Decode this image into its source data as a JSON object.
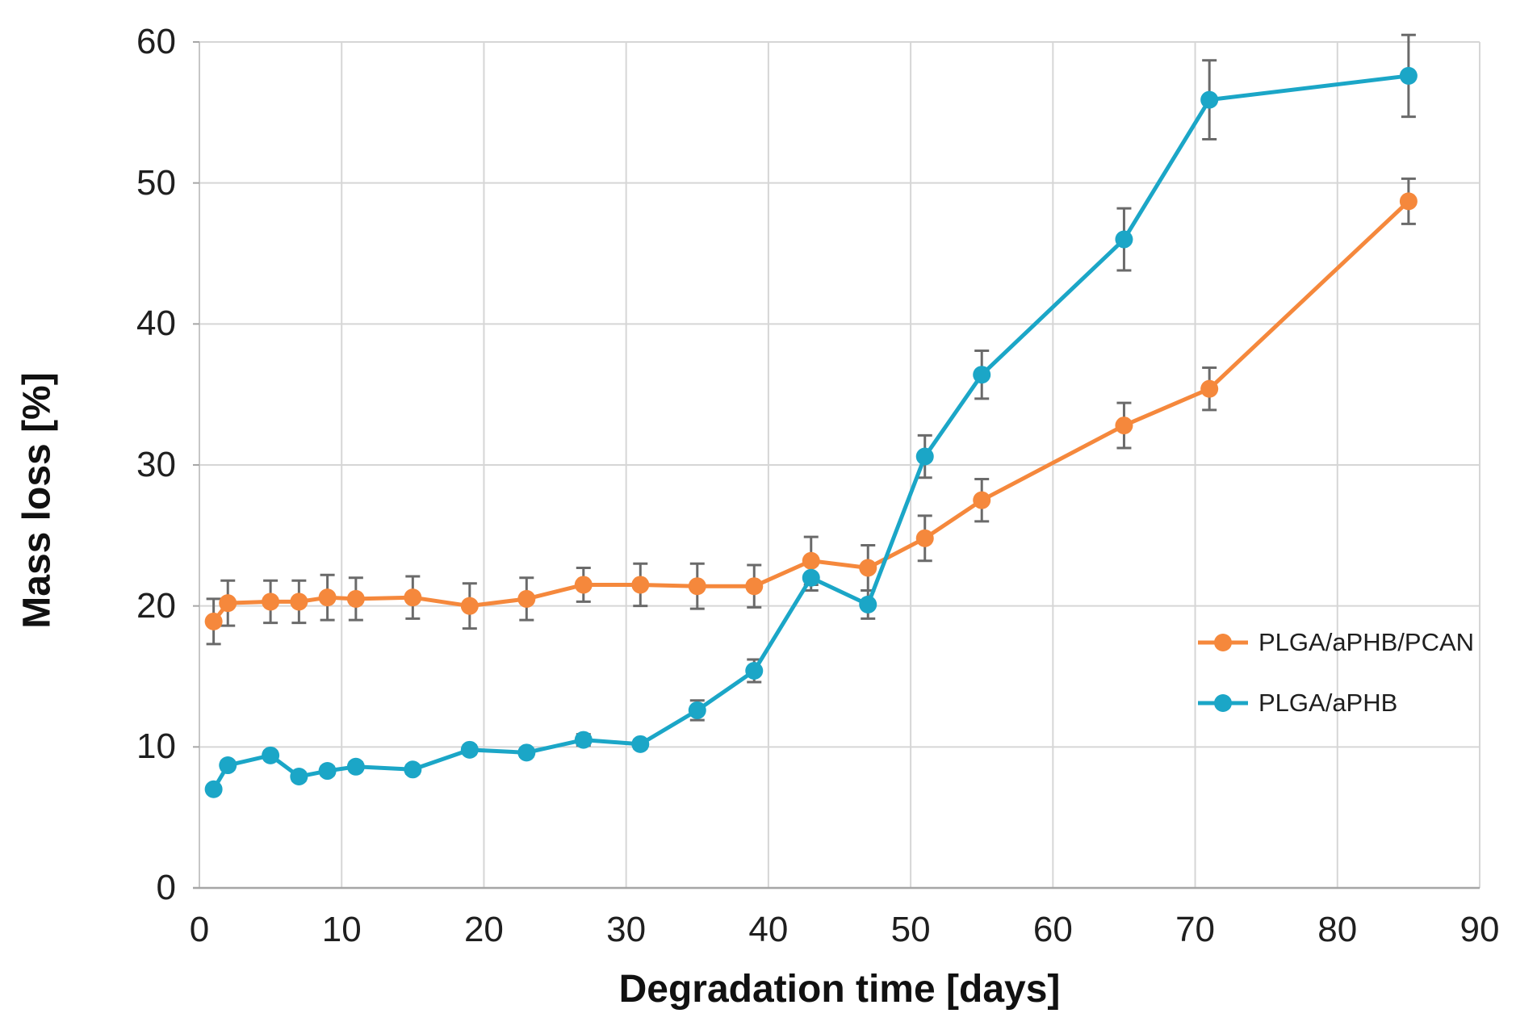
{
  "chart_data": {
    "type": "line",
    "title": "",
    "xlabel": "Degradation time [days]",
    "ylabel": "Mass loss [%]",
    "xlim": [
      0,
      90
    ],
    "ylim": [
      0,
      60
    ],
    "x_ticks": [
      0,
      10,
      20,
      30,
      40,
      50,
      60,
      70,
      80,
      90
    ],
    "y_ticks": [
      0,
      10,
      20,
      30,
      40,
      50,
      60
    ],
    "grid": true,
    "legend_position": "inside-right",
    "x": [
      1,
      2,
      5,
      7,
      9,
      11,
      15,
      19,
      23,
      27,
      31,
      35,
      39,
      43,
      47,
      51,
      55,
      65,
      71,
      85
    ],
    "series": [
      {
        "name": "PLGA/aPHB/PCAN",
        "color": "#F5883C",
        "values": [
          18.9,
          20.2,
          20.3,
          20.3,
          20.6,
          20.5,
          20.6,
          20.0,
          20.5,
          21.5,
          21.5,
          21.4,
          21.4,
          23.2,
          22.7,
          24.8,
          27.5,
          32.8,
          35.4,
          48.7
        ],
        "errors": [
          1.6,
          1.6,
          1.5,
          1.5,
          1.6,
          1.5,
          1.5,
          1.6,
          1.5,
          1.2,
          1.5,
          1.6,
          1.5,
          1.7,
          1.6,
          1.6,
          1.5,
          1.6,
          1.5,
          1.6
        ]
      },
      {
        "name": "PLGA/aPHB",
        "color": "#1BA6C7",
        "values": [
          7.0,
          8.7,
          9.4,
          7.9,
          8.3,
          8.6,
          8.4,
          9.8,
          9.6,
          10.5,
          10.2,
          12.6,
          15.4,
          22.0,
          20.1,
          30.6,
          36.4,
          46.0,
          55.9,
          57.6
        ],
        "errors": [
          0.2,
          0.3,
          0.3,
          0.3,
          0.3,
          0.3,
          0.3,
          0.3,
          0.3,
          0.4,
          0.3,
          0.7,
          0.8,
          0.9,
          1.0,
          1.5,
          1.7,
          2.2,
          2.8,
          2.9
        ]
      }
    ]
  },
  "styles": {
    "grid_color": "#D6D6D6",
    "left_axis_color": "#C6C6C6",
    "bottom_axis_color": "#A6A6A6",
    "error_bar_color": "#6A6A6A",
    "text_color": "#1F1F1F",
    "background": "#FFFFFF"
  }
}
